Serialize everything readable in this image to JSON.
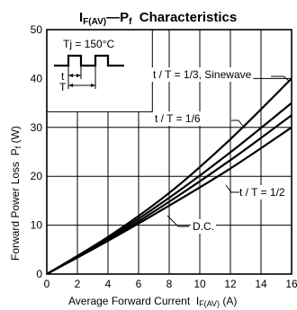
{
  "chart_data": {
    "type": "line",
    "title": {
      "main": "I",
      "main_sub": "F(AV)",
      "rest": "—P",
      "rest_sub": "f",
      "tail": "  Characteristics"
    },
    "xlabel": {
      "text": "Average Forward Current  I",
      "sub": "F(AV)",
      "unit": " (A)"
    },
    "ylabel": {
      "text": "Forward Power Loss  P",
      "sub": "f",
      "unit": " (W)"
    },
    "xlim": [
      0,
      16
    ],
    "ylim": [
      0,
      50
    ],
    "xticks": [
      0,
      2,
      4,
      6,
      8,
      10,
      12,
      14,
      16
    ],
    "yticks": [
      0,
      10,
      20,
      30,
      40,
      50
    ],
    "grid": true,
    "inset": {
      "label": "Tj = 150°C",
      "t_label": "t",
      "T_label": "T"
    },
    "series": [
      {
        "name": "t / T = 1/3,  Sinewave",
        "x": [
          0,
          4,
          8,
          12,
          16
        ],
        "y": [
          0,
          7.6,
          16.6,
          27.6,
          40.0
        ]
      },
      {
        "name": "t / T = 1/6",
        "x": [
          0,
          4,
          8,
          12,
          16
        ],
        "y": [
          0,
          7.3,
          15.6,
          24.9,
          35.0
        ]
      },
      {
        "name": "t / T = 1/2",
        "x": [
          0,
          4,
          8,
          12,
          16
        ],
        "y": [
          0,
          7.0,
          14.8,
          23.3,
          32.5
        ]
      },
      {
        "name": "D.C.",
        "x": [
          0,
          4,
          8,
          12,
          16
        ],
        "y": [
          0,
          6.8,
          14.0,
          21.6,
          30.0
        ]
      }
    ]
  }
}
